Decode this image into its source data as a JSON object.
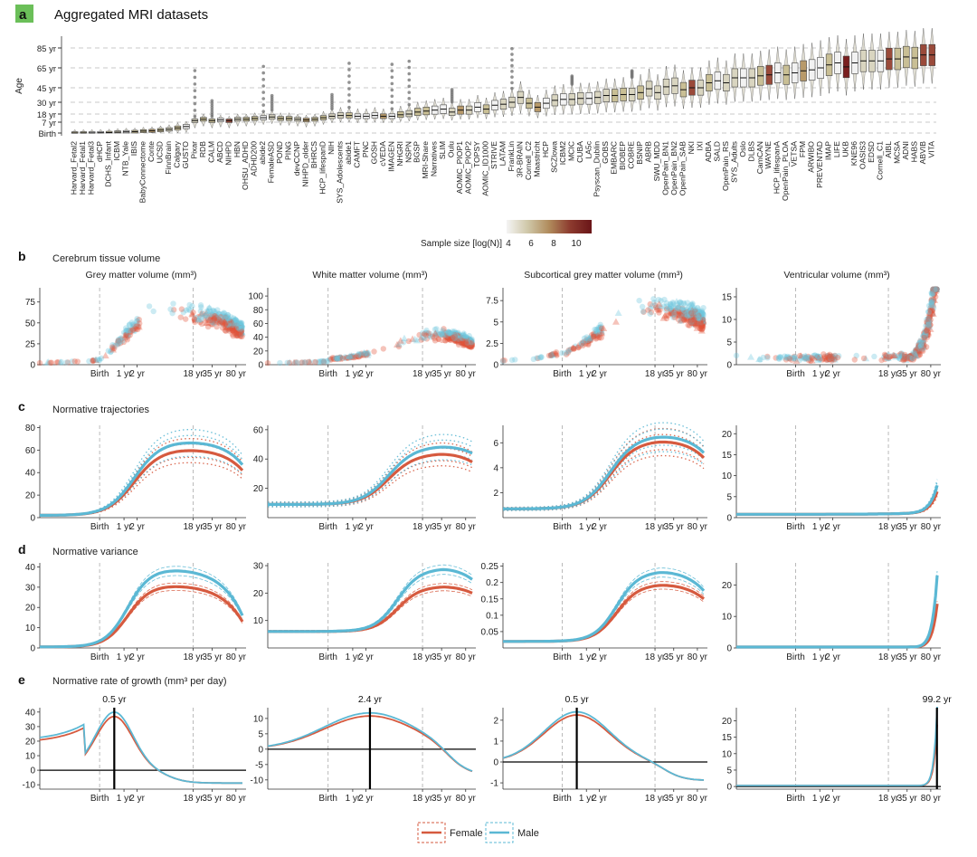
{
  "panels": {
    "a": {
      "letter": "a",
      "title": "Aggregated MRI datasets"
    },
    "b": {
      "letter": "b",
      "title": "Cerebrum tissue volume"
    },
    "c": {
      "letter": "c",
      "title": "Normative trajectories"
    },
    "d": {
      "letter": "d",
      "title": "Normative variance"
    },
    "e": {
      "letter": "e",
      "title": "Normative rate of growth (mm³ per day)"
    }
  },
  "legend": {
    "female": "Female",
    "male": "Male"
  },
  "colors": {
    "female": "#d65a3f",
    "male": "#5bb8d4",
    "female_pts": "#e2543a",
    "male_pts": "#6cc5de",
    "grid": "#bdbdbd",
    "badge": "#6bbf59"
  },
  "x_ticks": [
    "Birth",
    "1 yr",
    "2 yr",
    "18 yr",
    "35 yr",
    "80 yr"
  ],
  "chart_data": [
    {
      "id": "a",
      "type": "box",
      "title": "Aggregated MRI datasets",
      "ylabel": "Age",
      "yticks": [
        "Birth",
        "7 yr",
        "18 yr",
        "30 yr",
        "45 yr",
        "65 yr",
        "85 yr"
      ],
      "colorbar": {
        "label": "Sample size [log(N)]",
        "ticks": [
          "4",
          "6",
          "8",
          "10"
        ],
        "low": "#f2f2f2",
        "high": "#7a1e1e"
      },
      "categories": [
        "Harvard_Fetal2",
        "Harvard_Fetal1",
        "Harvard_Fetal3",
        "dHCP",
        "DCHS_Infant",
        "ICBM",
        "NTB_Yale",
        "IBIS",
        "BabyConnectome",
        "Conte",
        "UCSD",
        "FinnBrain",
        "Calgary",
        "GUSTO",
        "Pixar",
        "RDB",
        "CALM",
        "ABCD",
        "NIHPD",
        "HBN",
        "OHSU_ADHD",
        "ADHD200",
        "abide2",
        "FemaleASD",
        "POND",
        "PING",
        "devCCNP",
        "NIHPD_older",
        "BHRCS",
        "HCP_lifespanD",
        "NIH",
        "SYS_Adolescents",
        "abide1",
        "CAMFT",
        "PNC",
        "GOSH",
        "cVEDA",
        "IMAGEN",
        "NHGRI",
        "NSPN",
        "BGSP",
        "MRI-Share",
        "Narratives",
        "SLIM",
        "Oulu",
        "AOMIC_PIOP1",
        "AOMIC_PIOP2",
        "TOPSY",
        "AOMIC_ID1000",
        "STRIVE",
        "LATAM",
        "FrankLin",
        "3R-BRAIN",
        "Cornell_C2",
        "Maastricht",
        "HCP",
        "SCZlowa",
        "ICBM2",
        "MCIC",
        "CUBA",
        "LA5c",
        "Psyscan_Dublin",
        "GOBS",
        "EMBARC",
        "BIOBEP",
        "COBRE",
        "BSNIP",
        "ABRB",
        "SWU_MDD",
        "OpenPain_BN1",
        "OpenPain_BN2",
        "OpenPain_SAB",
        "NKI",
        "IXI",
        "ADBA",
        "SALD",
        "OpenPain_RS",
        "SYS_Adults",
        "Oslo",
        "DLBS",
        "CamCAN",
        "WAYNE",
        "HCP_lifespanA",
        "OpenPain_PLOA",
        "VETSA",
        "FPM",
        "ARWIBO",
        "PREVENTAD",
        "IMAP",
        "LIFE",
        "UKB",
        "KNE96",
        "OASIS3",
        "EDSD",
        "Cornell_C1",
        "AIBL",
        "MCSA",
        "ADNI",
        "HABS",
        "ABVIB",
        "VITA"
      ],
      "medians_yr": [
        -0.45,
        -0.42,
        -0.4,
        -0.3,
        -0.2,
        0.1,
        0.3,
        0.4,
        0.8,
        1,
        1.5,
        2,
        3,
        4,
        9,
        11,
        9,
        10,
        9,
        11,
        11,
        12,
        13,
        14,
        12,
        12,
        11,
        10,
        11,
        13,
        15,
        16,
        16,
        15,
        15,
        16,
        15,
        15,
        17,
        18,
        20,
        21,
        22,
        23,
        20,
        22,
        22,
        25,
        23,
        27,
        28,
        30,
        35,
        29,
        25,
        29,
        32,
        33,
        33,
        34,
        34,
        35,
        37,
        37,
        38,
        38,
        40,
        44,
        40,
        46,
        47,
        43,
        45,
        45,
        50,
        52,
        50,
        55,
        55,
        55,
        57,
        58,
        60,
        58,
        60,
        62,
        63,
        65,
        68,
        70,
        66,
        70,
        72,
        72,
        72,
        74,
        74,
        76,
        75,
        78,
        78
      ]
    },
    {
      "id": "b1",
      "type": "scatter",
      "title": "Grey matter volume (mm³)",
      "yticks": [
        0,
        25,
        50,
        75
      ],
      "ylim": [
        0,
        92
      ],
      "series": [
        {
          "name": "Female"
        },
        {
          "name": "Male"
        }
      ]
    },
    {
      "id": "b2",
      "type": "scatter",
      "title": "White matter volume (mm³)",
      "yticks": [
        0,
        20,
        40,
        60,
        80,
        100
      ],
      "ylim": [
        0,
        112
      ],
      "series": [
        {
          "name": "Female"
        },
        {
          "name": "Male"
        }
      ]
    },
    {
      "id": "b3",
      "type": "scatter",
      "title": "Subcortical grey matter volume (mm³)",
      "yticks": [
        0.0,
        2.5,
        5.0,
        7.5
      ],
      "ylim": [
        0,
        9
      ],
      "series": [
        {
          "name": "Female"
        },
        {
          "name": "Male"
        }
      ]
    },
    {
      "id": "b4",
      "type": "scatter",
      "title": "Ventricular volume (mm³)",
      "yticks": [
        0,
        5,
        10,
        15
      ],
      "ylim": [
        0,
        17
      ],
      "series": [
        {
          "name": "Female"
        },
        {
          "name": "Male"
        }
      ]
    },
    {
      "id": "c1",
      "type": "line",
      "yticks": [
        0,
        20,
        40,
        60,
        80
      ],
      "ylim": [
        0,
        82
      ],
      "peak_female": 61,
      "peak_male": 68,
      "start": 2,
      "end_female": 42,
      "end_male": 47
    },
    {
      "id": "c2",
      "type": "line",
      "yticks": [
        20,
        40,
        60
      ],
      "ylim": [
        0,
        63
      ],
      "peak_female": 44,
      "peak_male": 49,
      "start": 9,
      "end_female": 38,
      "end_male": 44
    },
    {
      "id": "c3",
      "type": "line",
      "yticks": [
        2,
        4,
        6
      ],
      "ylim": [
        0,
        7.4
      ],
      "peak_female": 6.2,
      "peak_male": 6.6,
      "start": 0.7,
      "end_female": 4.8,
      "end_male": 5.2
    },
    {
      "id": "c4",
      "type": "line",
      "yticks": [
        0,
        5,
        10,
        15,
        20
      ],
      "ylim": [
        0,
        22
      ],
      "end_female": 6.0,
      "end_male": 7.5
    },
    {
      "id": "d1",
      "type": "line",
      "yticks": [
        0,
        10,
        20,
        30,
        40
      ],
      "ylim": [
        0,
        42
      ],
      "peak_female": 31,
      "peak_male": 39,
      "end_female": 13,
      "end_male": 16
    },
    {
      "id": "d2",
      "type": "line",
      "yticks": [
        10,
        20,
        30
      ],
      "ylim": [
        0,
        31
      ],
      "peak_female": 22.5,
      "peak_male": 29,
      "start": 6,
      "end_female": 20,
      "end_male": 25
    },
    {
      "id": "d3",
      "type": "line",
      "yticks": [
        0.05,
        0.1,
        0.15,
        0.2,
        0.25
      ],
      "ylim": [
        0,
        0.26
      ],
      "peak_female": 0.195,
      "peak_male": 0.235,
      "end_female": 0.15,
      "end_male": 0.175
    },
    {
      "id": "d4",
      "type": "line",
      "yticks": [
        0,
        10,
        20
      ],
      "ylim": [
        0,
        27
      ],
      "end_female": 14,
      "end_male": 23
    },
    {
      "id": "e1",
      "type": "line",
      "yticks": [
        -10,
        0,
        10,
        20,
        30,
        40
      ],
      "ylim": [
        -13,
        43
      ],
      "peak_label": "0.5 yr",
      "peak_female": 37,
      "peak_male": 40
    },
    {
      "id": "e2",
      "type": "line",
      "yticks": [
        -10,
        -5,
        0,
        5,
        10
      ],
      "ylim": [
        -13,
        13.5
      ],
      "peak_label": "2.4 yr",
      "peak_female": 10.8,
      "peak_male": 11.8
    },
    {
      "id": "e3",
      "type": "line",
      "yticks": [
        -1,
        0,
        1,
        2
      ],
      "ylim": [
        -1.3,
        2.6
      ],
      "peak_label": "0.5 yr",
      "peak_female": 2.25,
      "peak_male": 2.4
    },
    {
      "id": "e4",
      "type": "line",
      "yticks": [
        0,
        5,
        10,
        15,
        20
      ],
      "ylim": [
        -0.8,
        24
      ],
      "peak_label": "99.2 yr",
      "end_female": 17,
      "end_male": 22
    }
  ]
}
